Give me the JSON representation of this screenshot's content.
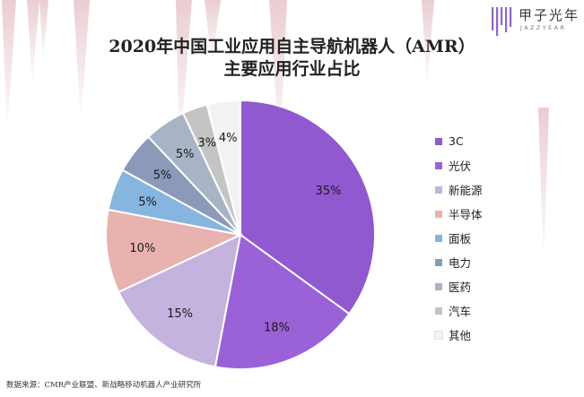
{
  "brand": {
    "name": "甲子光年",
    "sub": "JAZZYEAR"
  },
  "source": "数据来源：CMR产业联盟、新战略移动机器人产业研究所",
  "chart_data": {
    "type": "pie",
    "title": "2020年中国工业应用自主导航机器人（AMR）",
    "subtitle": "主要应用行业占比",
    "legend_position": "right",
    "slices": [
      {
        "label": "3C",
        "value": 35,
        "display": "35%",
        "color": "#9159cf"
      },
      {
        "label": "光伏",
        "value": 18,
        "display": "18%",
        "color": "#9a62d6"
      },
      {
        "label": "新能源",
        "value": 15,
        "display": "15%",
        "color": "#c3b3de"
      },
      {
        "label": "半导体",
        "value": 10,
        "display": "10%",
        "color": "#e8b2ae"
      },
      {
        "label": "面板",
        "value": 5,
        "display": "5%",
        "color": "#86b5e0"
      },
      {
        "label": "电力",
        "value": 5,
        "display": "5%",
        "color": "#8a9ab8"
      },
      {
        "label": "医药",
        "value": 5,
        "display": "5%",
        "color": "#a8b4c6"
      },
      {
        "label": "汽车",
        "value": 3,
        "display": "3%",
        "color": "#c4c4c4"
      },
      {
        "label": "其他",
        "value": 4,
        "display": "4%",
        "color": "#f2f2f4"
      }
    ]
  }
}
